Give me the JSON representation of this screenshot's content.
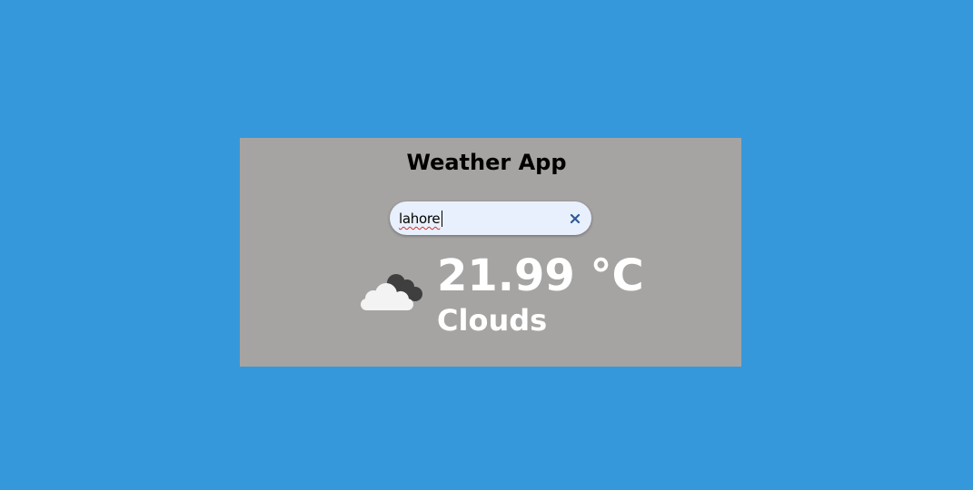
{
  "app": {
    "title": "Weather App"
  },
  "search": {
    "value": "lahore",
    "clear_icon": "close-icon"
  },
  "weather": {
    "temperature": "21.99 °C",
    "description": "Clouds",
    "icon": "clouds-icon"
  },
  "colors": {
    "background": "#3598db",
    "card": "#a6a4a2",
    "input_background": "#e8f0fe",
    "clear_icon": "#2f5a96",
    "text_primary": "#000000",
    "text_weather": "#ffffff"
  }
}
